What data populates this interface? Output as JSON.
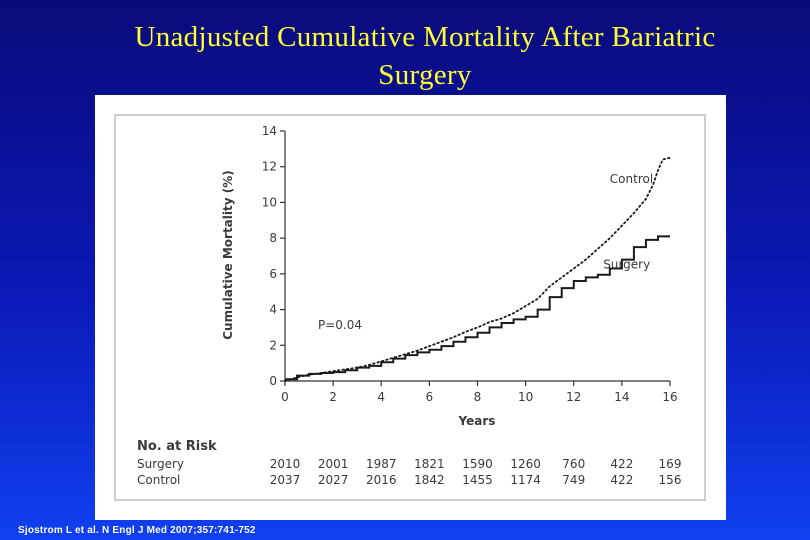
{
  "slide": {
    "title_line1": "Unadjusted Cumulative Mortality After Bariatric",
    "title_line2": "Surgery",
    "citation": "Sjostrom L et al. N Engl J Med 2007;357:741-752"
  },
  "colors": {
    "background_top": "#0a0a7a",
    "background_bottom": "#1040f0",
    "title": "#ffff33",
    "line": "#1a1a1a"
  },
  "chart_data": {
    "type": "line",
    "title": "",
    "xlabel": "Years",
    "ylabel": "Cumulative Mortality (%)",
    "xlim": [
      0,
      16
    ],
    "ylim": [
      0,
      14
    ],
    "x_ticks": [
      "0",
      "2",
      "4",
      "6",
      "8",
      "10",
      "12",
      "14",
      "16"
    ],
    "y_ticks": [
      "0",
      "2",
      "4",
      "6",
      "8",
      "10",
      "12",
      "14"
    ],
    "grid": false,
    "annotation": "P=0.04",
    "series": [
      {
        "name": "Control",
        "style": "dotted",
        "x": [
          0,
          0.5,
          1,
          1.5,
          2,
          2.5,
          3,
          3.5,
          4,
          4.5,
          5,
          5.5,
          6,
          6.5,
          7,
          7.5,
          8,
          8.5,
          9,
          9.5,
          10,
          10.5,
          11,
          11.5,
          12,
          12.5,
          13,
          13.5,
          14,
          14.5,
          15,
          15.3,
          15.5,
          15.7,
          16
        ],
        "values": [
          0,
          0.2,
          0.35,
          0.45,
          0.55,
          0.65,
          0.75,
          0.9,
          1.1,
          1.3,
          1.5,
          1.7,
          1.95,
          2.2,
          2.45,
          2.75,
          3.0,
          3.3,
          3.5,
          3.8,
          4.2,
          4.6,
          5.3,
          5.8,
          6.3,
          6.8,
          7.4,
          8.0,
          8.7,
          9.4,
          10.2,
          11.0,
          11.8,
          12.4,
          12.5
        ]
      },
      {
        "name": "Surgery",
        "style": "solid",
        "x": [
          0,
          0.5,
          1,
          1.5,
          2,
          2.5,
          3,
          3.5,
          4,
          4.5,
          5,
          5.5,
          6,
          6.5,
          7,
          7.5,
          8,
          8.5,
          9,
          9.5,
          10,
          10.5,
          11,
          11.5,
          12,
          12.5,
          13,
          13.5,
          14,
          14.5,
          15,
          15.5,
          16
        ],
        "values": [
          0.1,
          0.3,
          0.4,
          0.45,
          0.5,
          0.6,
          0.75,
          0.85,
          1.05,
          1.25,
          1.45,
          1.6,
          1.75,
          1.95,
          2.2,
          2.45,
          2.7,
          3.0,
          3.25,
          3.45,
          3.6,
          4.0,
          4.7,
          5.2,
          5.6,
          5.8,
          5.95,
          6.3,
          6.8,
          7.5,
          7.9,
          8.1,
          8.1
        ]
      }
    ],
    "risk_table": {
      "header": "No. at Risk",
      "rows": [
        {
          "label": "Surgery",
          "values": [
            "2010",
            "2001",
            "1987",
            "1821",
            "1590",
            "1260",
            "760",
            "422",
            "169"
          ]
        },
        {
          "label": "Control",
          "values": [
            "2037",
            "2027",
            "2016",
            "1842",
            "1455",
            "1174",
            "749",
            "422",
            "156"
          ]
        }
      ]
    }
  }
}
